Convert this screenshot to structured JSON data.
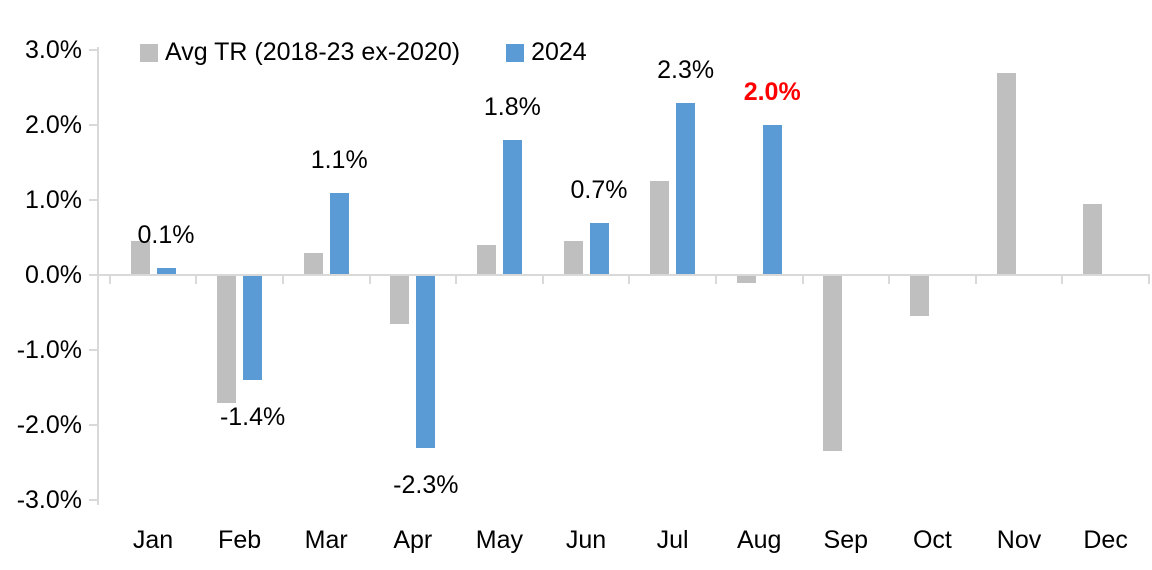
{
  "chart_data": {
    "type": "bar",
    "title": "",
    "xlabel": "",
    "ylabel": "",
    "categories": [
      "Jan",
      "Feb",
      "Mar",
      "Apr",
      "May",
      "Jun",
      "Jul",
      "Aug",
      "Sep",
      "Oct",
      "Nov",
      "Dec"
    ],
    "series": [
      {
        "name": "Avg TR (2018-23 ex-2020)",
        "color": "#BFBFBF",
        "values": [
          0.45,
          -1.7,
          0.3,
          -0.65,
          0.4,
          0.45,
          1.25,
          -0.1,
          -2.35,
          -0.55,
          2.7,
          0.95
        ]
      },
      {
        "name": "2024",
        "color": "#5B9BD5",
        "values": [
          0.1,
          -1.4,
          1.1,
          -2.3,
          1.8,
          0.7,
          2.3,
          2.0,
          null,
          null,
          null,
          null
        ]
      }
    ],
    "data_labels": [
      {
        "category_index": 0,
        "text": "0.1%",
        "color": "#000000",
        "bold": false
      },
      {
        "category_index": 1,
        "text": "-1.4%",
        "color": "#000000",
        "bold": false
      },
      {
        "category_index": 2,
        "text": "1.1%",
        "color": "#000000",
        "bold": false
      },
      {
        "category_index": 3,
        "text": "-2.3%",
        "color": "#000000",
        "bold": false
      },
      {
        "category_index": 4,
        "text": "1.8%",
        "color": "#000000",
        "bold": false
      },
      {
        "category_index": 5,
        "text": "0.7%",
        "color": "#000000",
        "bold": false
      },
      {
        "category_index": 6,
        "text": "2.3%",
        "color": "#000000",
        "bold": false
      },
      {
        "category_index": 7,
        "text": "2.0%",
        "color": "#FF0000",
        "bold": true
      }
    ],
    "y_ticks": [
      "3.0%",
      "2.0%",
      "1.0%",
      "0.0%",
      "-1.0%",
      "-2.0%",
      "-3.0%"
    ],
    "ylim": [
      -3.0,
      3.0
    ],
    "grid": "off",
    "legend_position": "top",
    "axis_color": "#D9D9D9"
  }
}
